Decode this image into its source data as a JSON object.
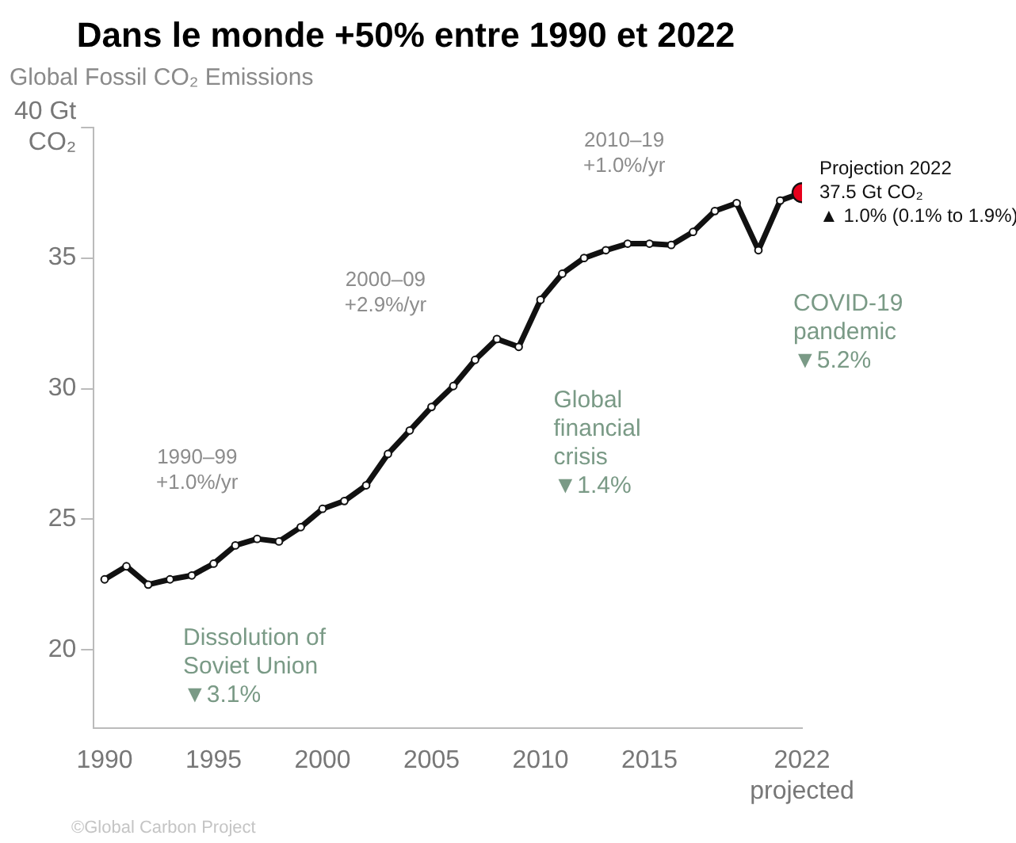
{
  "chart_data": {
    "type": "line",
    "title": "Dans le monde +50% entre 1990 et 2022",
    "subtitle": "Global Fossil CO₂ Emissions",
    "x": [
      1990,
      1991,
      1992,
      1993,
      1994,
      1995,
      1996,
      1997,
      1998,
      1999,
      2000,
      2001,
      2002,
      2003,
      2004,
      2005,
      2006,
      2007,
      2008,
      2009,
      2010,
      2011,
      2012,
      2013,
      2014,
      2015,
      2016,
      2017,
      2018,
      2019,
      2020,
      2021,
      2022
    ],
    "series": [
      {
        "color": "#111111",
        "values": [
          22.7,
          23.2,
          22.5,
          22.7,
          22.85,
          23.3,
          24.0,
          24.25,
          24.15,
          24.7,
          25.4,
          25.7,
          26.3,
          27.5,
          28.4,
          29.3,
          30.1,
          31.1,
          31.9,
          31.6,
          33.4,
          34.4,
          35.0,
          35.3,
          35.55,
          35.55,
          35.5,
          36.0,
          36.8,
          37.1,
          35.3,
          37.2,
          37.5
        ]
      },
      {
        "type": "scatter",
        "color": "#e8001c",
        "x": [
          2022
        ],
        "values": [
          37.5
        ]
      }
    ],
    "xlim": [
      1989.5,
      2022
    ],
    "xticks": [
      1990,
      1995,
      2000,
      2005,
      2010,
      2015,
      {
        "value": 2022,
        "label": "2022\nprojected"
      }
    ],
    "ylim": [
      17,
      40
    ],
    "yticks": [
      20,
      25,
      30,
      35,
      {
        "value": 40,
        "label": "40 Gt\nCO₂"
      }
    ],
    "grid": false,
    "legend": false,
    "marker": "circle",
    "line_style": "solid",
    "annotations": [
      "1990–99\n+1.0%/yr",
      "2000–09\n+2.9%/yr",
      "2010–19\n+1.0%/yr",
      {
        "text": "Dissolution of\nSoviet Union\n▼3.1%",
        "x": 1992,
        "y": 22.5
      },
      {
        "text": "Global\nfinancial\ncrisis\n▼1.4%",
        "x": 2009,
        "y": 31.6
      },
      {
        "text": "COVID-19\npandemic\n▼5.2%",
        "x": 2020,
        "y": 35.3
      },
      {
        "text": "Projection 2022\n37.5 Gt CO₂\n▲ 1.0% (0.1% to 1.9%)",
        "x": 2022,
        "y": 37.5
      },
      "©Global Carbon Project"
    ]
  }
}
